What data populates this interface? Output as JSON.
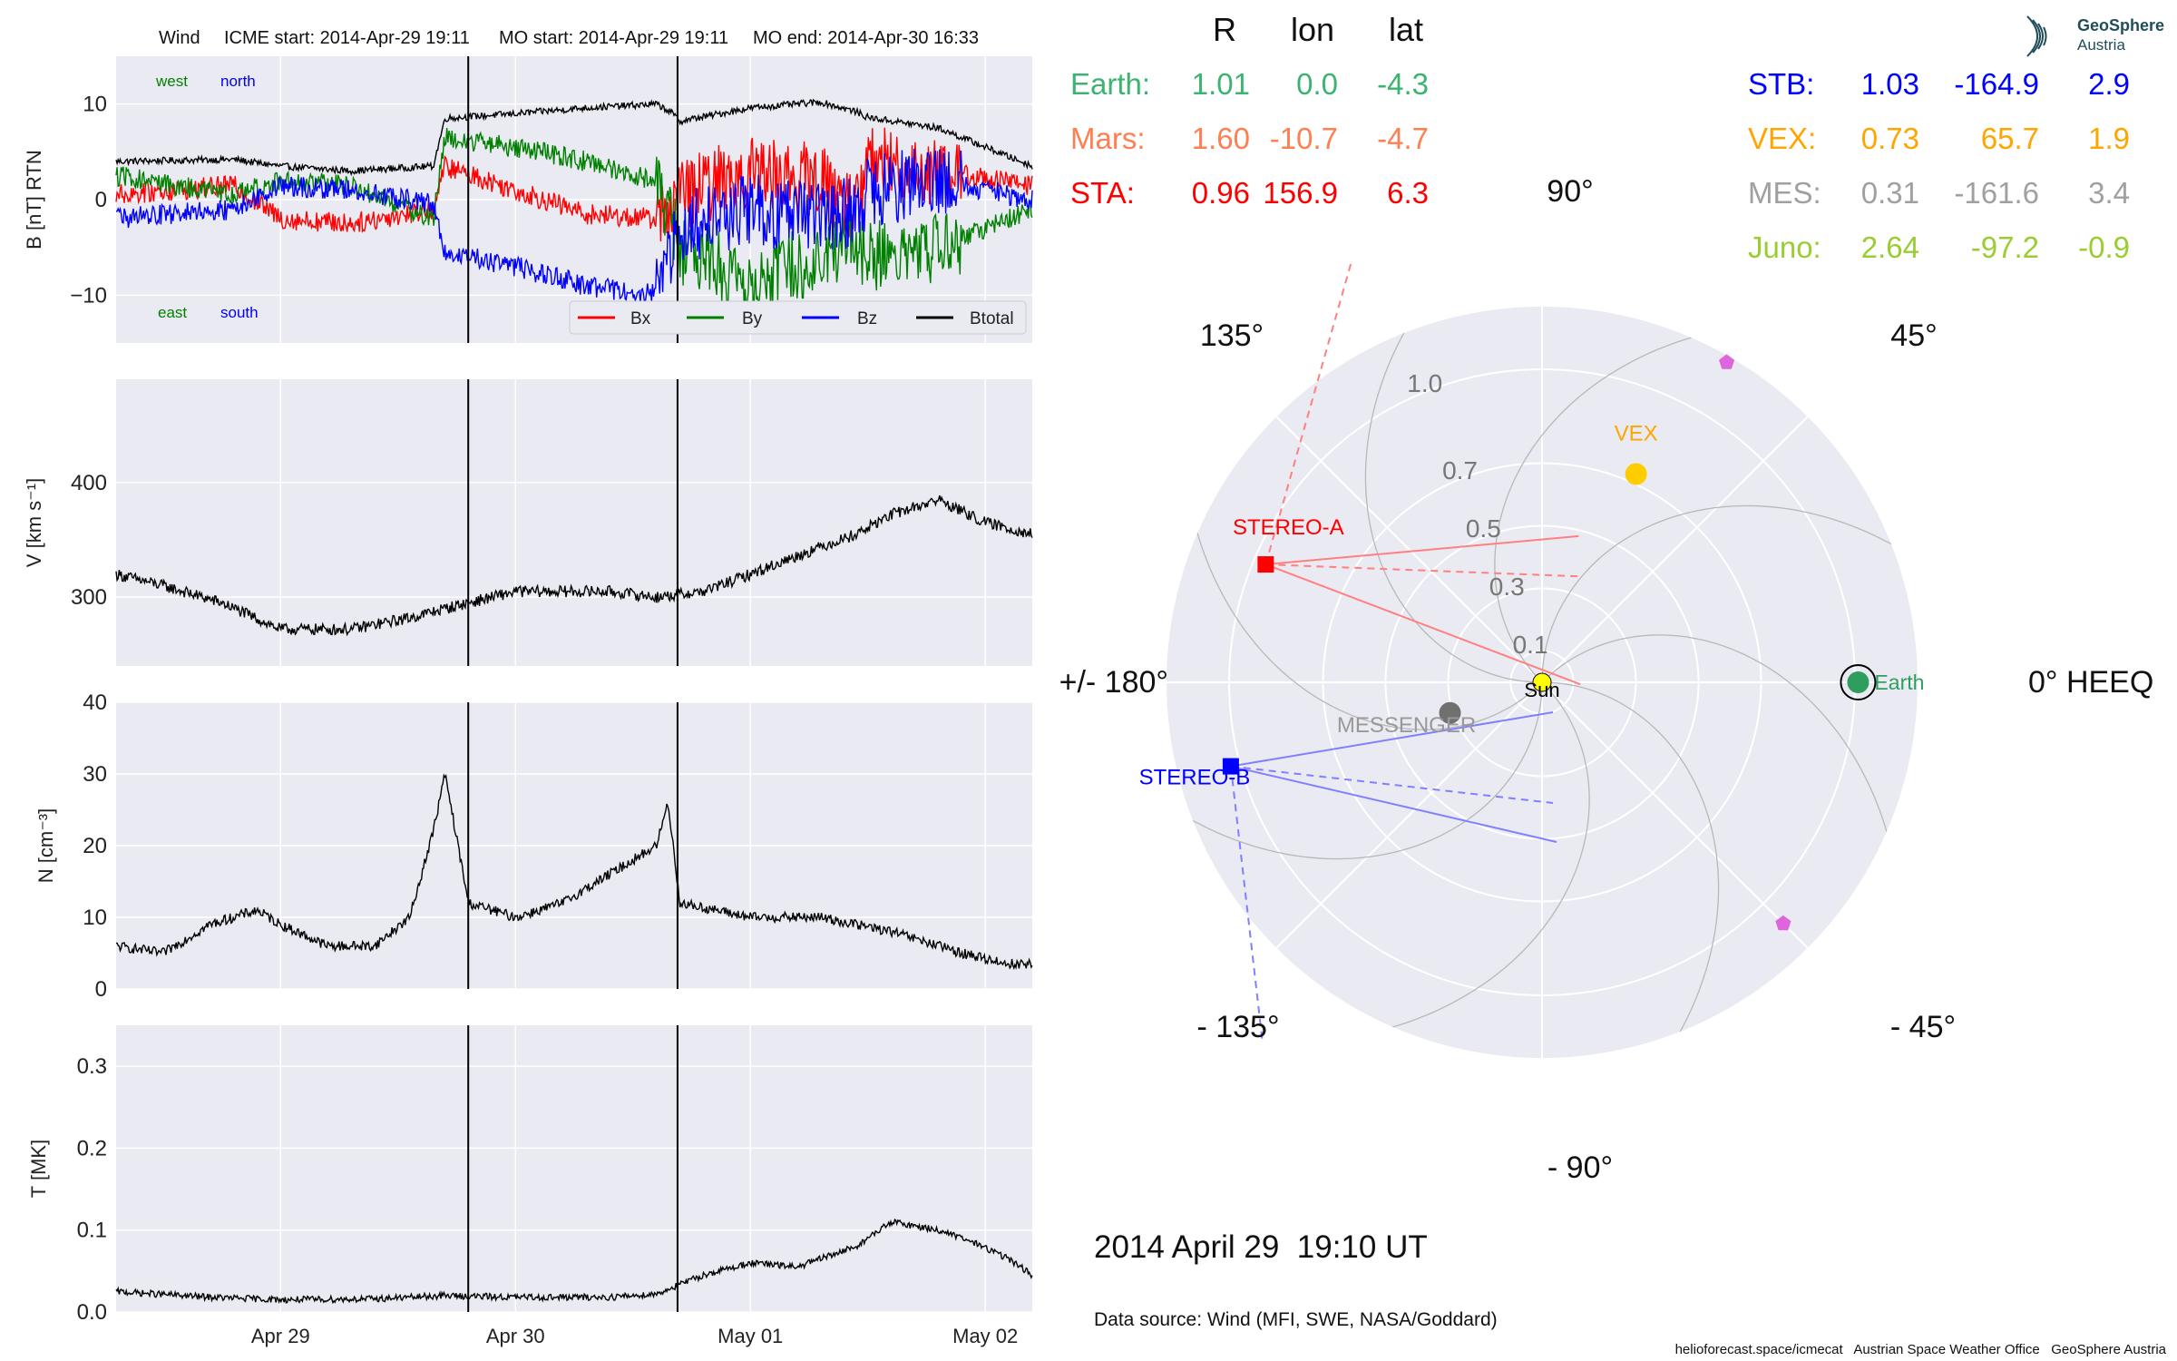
{
  "header": {
    "spacecraft": "Wind",
    "icme_start": "ICME start: 2014-Apr-29 19:11",
    "mo_start": "MO start: 2014-Apr-29 19:11",
    "mo_end": "MO end: 2014-Apr-30 16:33"
  },
  "logo": {
    "name": "GeoSphere",
    "sub": "Austria"
  },
  "chart_data": [
    {
      "type": "line",
      "panel": "magnetic-field",
      "ylabel": "B [nT] RTN",
      "ylim": [
        -15,
        15
      ],
      "yticks": [
        10,
        0,
        -10
      ],
      "tick_labels": [
        "10",
        "0",
        "−10"
      ],
      "xlim_days": [
        28.3,
        32.2
      ],
      "corner_labels": {
        "west": "west",
        "north": "north",
        "east": "east",
        "south": "south"
      },
      "legend": [
        "Bx",
        "By",
        "Bz",
        "Btotal"
      ],
      "series": [
        {
          "name": "Btotal",
          "color": "#000000",
          "x": [
            28.3,
            28.8,
            29.0,
            29.3,
            29.65,
            29.7,
            30.0,
            30.3,
            30.6,
            30.66,
            30.7,
            31.0,
            31.3,
            31.45,
            31.5,
            31.8,
            32.2
          ],
          "y": [
            4.0,
            4.2,
            3.5,
            3.0,
            3.5,
            8.5,
            9.0,
            9.6,
            10.0,
            9.2,
            8.2,
            9.6,
            10.2,
            9.2,
            8.6,
            7.5,
            3.5
          ]
        },
        {
          "name": "Bx",
          "color": "#ff0000",
          "x": [
            28.3,
            28.8,
            29.0,
            29.3,
            29.65,
            29.7,
            30.0,
            30.3,
            30.6,
            30.7,
            31.0,
            31.3,
            31.45,
            31.5,
            31.8,
            32.2
          ],
          "y": [
            0.5,
            1.5,
            -2.0,
            -2.5,
            -1.0,
            3.5,
            1.0,
            -1.5,
            -2.0,
            0.5,
            3.0,
            2.0,
            -1.0,
            4.0,
            3.0,
            1.5
          ]
        },
        {
          "name": "By",
          "color": "#008000",
          "x": [
            28.3,
            28.8,
            29.0,
            29.3,
            29.65,
            29.7,
            30.0,
            30.3,
            30.6,
            30.7,
            31.0,
            31.3,
            31.45,
            31.5,
            31.8,
            32.2
          ],
          "y": [
            2.5,
            0.5,
            2.0,
            1.5,
            -2.0,
            6.5,
            5.5,
            4.0,
            2.0,
            -5.0,
            -8.5,
            -6.0,
            -4.0,
            -6.0,
            -5.0,
            -1.0
          ]
        },
        {
          "name": "Bz",
          "color": "#0000ff",
          "x": [
            28.3,
            28.8,
            29.0,
            29.3,
            29.65,
            29.7,
            30.0,
            30.3,
            30.6,
            30.7,
            31.0,
            31.3,
            31.45,
            31.5,
            31.8,
            32.2
          ],
          "y": [
            -2.0,
            -1.0,
            1.5,
            1.0,
            -0.5,
            -5.5,
            -7.0,
            -9.0,
            -10.0,
            -3.0,
            -1.0,
            -2.0,
            -1.0,
            1.0,
            2.0,
            0.0
          ]
        }
      ]
    },
    {
      "type": "line",
      "panel": "speed",
      "ylabel": "V [km s⁻¹]",
      "ylim": [
        240,
        490
      ],
      "yticks": [
        400,
        300
      ],
      "xlim_days": [
        28.3,
        32.2
      ],
      "series": [
        {
          "name": "V",
          "color": "#000000",
          "x": [
            28.3,
            28.5,
            28.75,
            29.0,
            29.3,
            29.55,
            29.7,
            30.0,
            30.4,
            30.6,
            30.8,
            31.0,
            31.25,
            31.45,
            31.6,
            31.8,
            32.0,
            32.2
          ],
          "y": [
            320,
            310,
            295,
            272,
            272,
            282,
            290,
            305,
            305,
            300,
            305,
            320,
            340,
            355,
            372,
            385,
            365,
            355
          ]
        }
      ]
    },
    {
      "type": "line",
      "panel": "density",
      "ylabel": "N [cm⁻³]",
      "ylim": [
        0,
        40
      ],
      "yticks": [
        40,
        30,
        20,
        10,
        0
      ],
      "xlim_days": [
        28.3,
        32.2
      ],
      "series": [
        {
          "name": "N",
          "color": "#000000",
          "x": [
            28.3,
            28.5,
            28.7,
            28.9,
            29.0,
            29.2,
            29.4,
            29.55,
            29.65,
            29.7,
            29.8,
            30.0,
            30.2,
            30.4,
            30.6,
            30.65,
            30.7,
            31.0,
            31.3,
            31.6,
            31.9,
            32.1,
            32.2
          ],
          "y": [
            6,
            5,
            9,
            11,
            9,
            6,
            6,
            10,
            22,
            30,
            12,
            10,
            12,
            16,
            20,
            26,
            12,
            10,
            10,
            8,
            5,
            3.5,
            3.5
          ]
        }
      ]
    },
    {
      "type": "line",
      "panel": "temperature",
      "ylabel": "T [MK]",
      "ylim": [
        0,
        0.35
      ],
      "yticks": [
        0.3,
        0.2,
        0.1,
        0.0
      ],
      "xlim_days": [
        28.3,
        32.2
      ],
      "xticks": [
        29,
        30,
        31,
        32
      ],
      "xtick_labels": [
        "Apr 29",
        "Apr 30",
        "May 01",
        "May 02"
      ],
      "series": [
        {
          "name": "T",
          "color": "#000000",
          "x": [
            28.3,
            28.7,
            29.0,
            29.4,
            29.7,
            30.0,
            30.4,
            30.6,
            30.8,
            31.0,
            31.2,
            31.45,
            31.6,
            31.8,
            31.95,
            32.1,
            32.2
          ],
          "y": [
            0.025,
            0.018,
            0.015,
            0.016,
            0.02,
            0.018,
            0.018,
            0.022,
            0.045,
            0.06,
            0.055,
            0.08,
            0.11,
            0.1,
            0.085,
            0.065,
            0.045
          ]
        }
      ]
    },
    {
      "type": "scatter",
      "panel": "polar-position",
      "coordinate_system": "0° HEEQ",
      "angle_labels": [
        "90°",
        "45°",
        "0° HEEQ",
        "- 45°",
        "- 90°",
        "- 135°",
        "+/- 180°",
        "135°"
      ],
      "radial_labels": [
        "0.1",
        "0.3",
        "0.5",
        "0.7",
        "1.0"
      ],
      "points": [
        {
          "name": "Sun",
          "r": 0.0,
          "lon": 0.0,
          "color": "#ffff00"
        },
        {
          "name": "Earth",
          "r": 1.01,
          "lon": 0.0,
          "color": "#2e9e5f"
        },
        {
          "name": "VEX",
          "r": 0.73,
          "lon": 65.7,
          "color": "#ffb000"
        },
        {
          "name": "MESSENGER",
          "r": 0.31,
          "lon": -161.6,
          "color": "#707070"
        },
        {
          "name": "STEREO-A",
          "r": 0.96,
          "lon": 156.9,
          "color": "#ff0000"
        },
        {
          "name": "STEREO-B",
          "r": 1.03,
          "lon": -164.9,
          "color": "#0000ff"
        },
        {
          "name": "",
          "r": 1.18,
          "lon": 60.0,
          "color": "#dd66dd"
        },
        {
          "name": "",
          "r": 1.09,
          "lon": -45.0,
          "color": "#dd66dd"
        }
      ]
    }
  ],
  "positions_table": {
    "columns": [
      "R",
      "lon",
      "lat"
    ],
    "left": [
      {
        "label": "Earth:",
        "R": "1.01",
        "lon": "0.0",
        "lat": "-4.3",
        "color": "#3cb371"
      },
      {
        "label": "Mars:",
        "R": "1.60",
        "lon": "-10.7",
        "lat": "-4.7",
        "color": "#ff7f50"
      },
      {
        "label": "STA:",
        "R": "0.96",
        "lon": "156.9",
        "lat": "6.3",
        "color": "#ff0000"
      }
    ],
    "right": [
      {
        "label": "STB:",
        "R": "1.03",
        "lon": "-164.9",
        "lat": "2.9",
        "color": "#0000ff"
      },
      {
        "label": "VEX:",
        "R": "0.73",
        "lon": "65.7",
        "lat": "1.9",
        "color": "#ffa500"
      },
      {
        "label": "MES:",
        "R": "0.31",
        "lon": "-161.6",
        "lat": "3.4",
        "color": "#a0a0a0"
      },
      {
        "label": "Juno:",
        "R": "2.64",
        "lon": "-97.2",
        "lat": "-0.9",
        "color": "#9acd32"
      }
    ]
  },
  "event_lines_days": [
    29.799,
    30.69
  ],
  "timestamp": "2014 April 29  19:10 UT",
  "data_source": "Data source: Wind (MFI, SWE, NASA/Goddard)",
  "footer": "helioforecast.space/icmecat   Austrian Space Weather Office   GeoSphere Austria"
}
